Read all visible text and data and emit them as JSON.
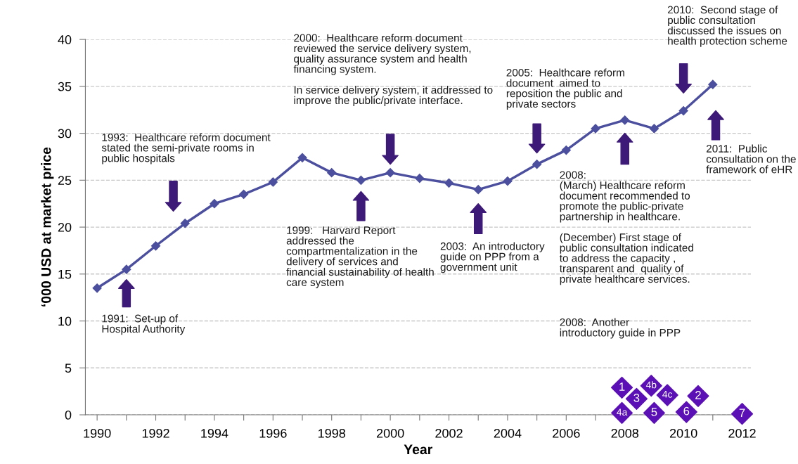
{
  "chart_data": {
    "type": "line",
    "xlabel": "Year",
    "ylabel": "‘000 USD at market price",
    "xlim": [
      1989.6,
      2012.3
    ],
    "xticks": [
      1990,
      {
        "value": 1991,
        "label": null
      },
      1992,
      {
        "value": 1993,
        "label": null
      },
      1994,
      {
        "value": 1995,
        "label": null
      },
      1996,
      {
        "value": 1997,
        "label": null
      },
      1998,
      {
        "value": 1999,
        "label": null
      },
      2000,
      {
        "value": 2001,
        "label": null
      },
      2002,
      {
        "value": 2003,
        "label": null
      },
      2004,
      {
        "value": 2005,
        "label": null
      },
      2006,
      {
        "value": 2007,
        "label": null
      },
      2008,
      {
        "value": 2009,
        "label": null
      },
      2010,
      {
        "value": 2011,
        "label": null
      },
      2012
    ],
    "ylim": [
      0,
      40
    ],
    "yticks": [
      0,
      5,
      10,
      15,
      20,
      25,
      30,
      35,
      40
    ],
    "grid": "y",
    "legend": false,
    "series": [
      {
        "color": "#4b4f9e",
        "marker": "diamond",
        "x": [
          1990,
          1991,
          1992,
          1993,
          1994,
          1995,
          1996,
          1997,
          1998,
          1999,
          2000,
          2001,
          2002,
          2003,
          2004,
          2005,
          2006,
          2007,
          2008,
          2009,
          2010,
          2011
        ],
        "values": [
          13.5,
          15.5,
          18,
          20.4,
          22.5,
          23.5,
          24.8,
          27.4,
          25.8,
          25.0,
          25.8,
          25.2,
          24.7,
          24.0,
          24.9,
          26.7,
          28.2,
          30.5,
          31.4,
          30.5,
          32.4,
          35.2
        ]
      },
      {
        "type": "scatter",
        "color": "#5b10b5",
        "marker": "diamond",
        "x": [
          2007.9,
          2007.9,
          2008.4,
          2008.9,
          2009.0,
          2009.45,
          2010.1,
          2010.5,
          2012.0
        ],
        "values": [
          2.9,
          0.2,
          1.7,
          3.1,
          0.2,
          2.1,
          0.3,
          2.0,
          0.1
        ]
      }
    ],
    "annotations": [
      "1991:  Set-up of\nHospital Authority",
      "1993:  Healthcare reform document\nstated the semi-private rooms in\npublic hospitals",
      "1999:   Harvard Report\naddressed the\ncompartmentalization in the\ndelivery of services and\nfinancial sustainability of health\ncare system",
      "2000:  Healthcare reform document\nreviewed the service delivery system,\nquality assurance system and health\nfinancing system.\n\nIn service delivery system, it addressed to\nimprove the public/private interface.",
      "2003:  An introductory\nguide on PPP from a\ngovernment unit",
      "2005:  Healthcare reform\ndocument  aimed to\nreposition the public and\nprivate sectors",
      "2008:\n(March) Healthcare reform\ndocument recommended to\npromote the public-private\npartnership in healthcare.\n\n(December) First stage of\npublic consultation indicated\nto address the capacity ,\ntransparent and  quality of\nprivate healthcare services.",
      "2008:  Another\nintroductory guide in PPP",
      "2010:  Second stage of\npublic consultation\ndiscussed the issues on\nhealth protection scheme",
      "2011:  Public\nconsultation on the\nframework of eHR",
      {
        "text": "1",
        "x": 2007.9,
        "y": 2.9
      },
      {
        "text": "4a",
        "x": 2007.9,
        "y": 0.2
      },
      {
        "text": "3",
        "x": 2008.4,
        "y": 1.7
      },
      {
        "text": "4b",
        "x": 2008.9,
        "y": 3.1
      },
      {
        "text": "5",
        "x": 2009.0,
        "y": 0.2
      },
      {
        "text": "4c",
        "x": 2009.45,
        "y": 2.1
      },
      {
        "text": "6",
        "x": 2010.1,
        "y": 0.3
      },
      {
        "text": "2",
        "x": 2010.5,
        "y": 2.0
      },
      {
        "text": "7",
        "x": 2012.0,
        "y": 0.1
      }
    ]
  }
}
